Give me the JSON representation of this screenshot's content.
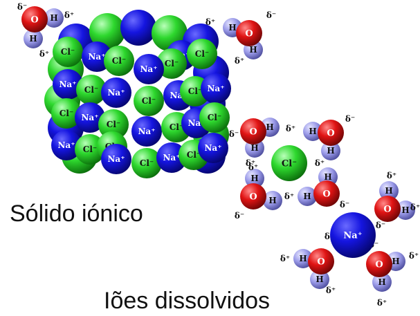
{
  "captions": {
    "solid": "Sólido iónico",
    "dissolved": "Iões dissolvidos"
  },
  "labels": {
    "sodium": "Na⁺",
    "chloride": "Cl⁻",
    "oxygen": "O",
    "hydrogen": "H",
    "partial_positive": "δ⁺",
    "partial_negative": "δ⁻"
  },
  "colors": {
    "sodium": "#0d0dd4",
    "chloride": "#27d427",
    "oxygen": "#e01a1a",
    "hydrogen": "#8a8ae6",
    "background": "#ffffff"
  }
}
